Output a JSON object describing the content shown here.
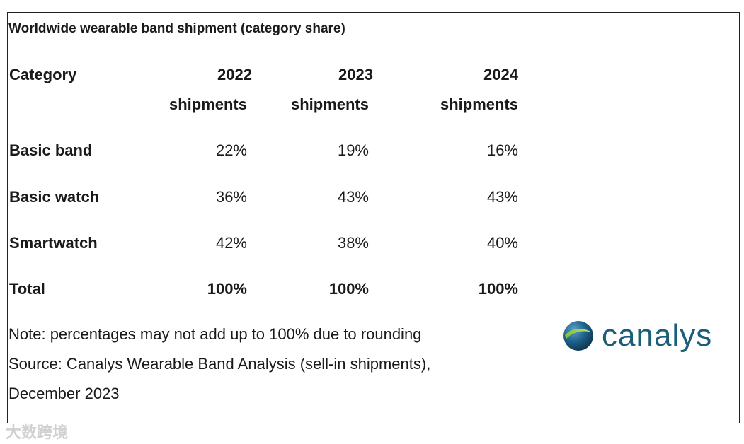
{
  "title": "Worldwide wearable band shipment (category share)",
  "header": {
    "category": "Category",
    "years": [
      "2022",
      "2023",
      "2024"
    ],
    "sub": [
      "shipments",
      "shipments",
      "shipments"
    ]
  },
  "rows": [
    {
      "label": "Basic band",
      "values": [
        "22%",
        "19%",
        "16%"
      ]
    },
    {
      "label": "Basic watch",
      "values": [
        "36%",
        "43%",
        "43%"
      ]
    },
    {
      "label": "Smartwatch",
      "values": [
        "42%",
        "38%",
        "40%"
      ]
    },
    {
      "label": "Total",
      "values": [
        "100%",
        "100%",
        "100%"
      ]
    }
  ],
  "note": "Note: percentages may not add up to 100% due to rounding",
  "source_line1": "Source: Canalys Wearable Band Analysis (sell-in shipments),",
  "source_line2": "December 2023",
  "logo": "canalys",
  "watermark": "大数跨境",
  "chart_data": {
    "type": "table",
    "title": "Worldwide wearable band shipment (category share)",
    "columns": [
      "2022 shipments",
      "2023 shipments",
      "2024 shipments"
    ],
    "categories": [
      "Basic band",
      "Basic watch",
      "Smartwatch",
      "Total"
    ],
    "series": [
      {
        "name": "2022 shipments",
        "values": [
          22,
          36,
          42,
          100
        ]
      },
      {
        "name": "2023 shipments",
        "values": [
          19,
          43,
          38,
          100
        ]
      },
      {
        "name": "2024 shipments",
        "values": [
          16,
          43,
          40,
          100
        ]
      }
    ],
    "unit": "%"
  }
}
